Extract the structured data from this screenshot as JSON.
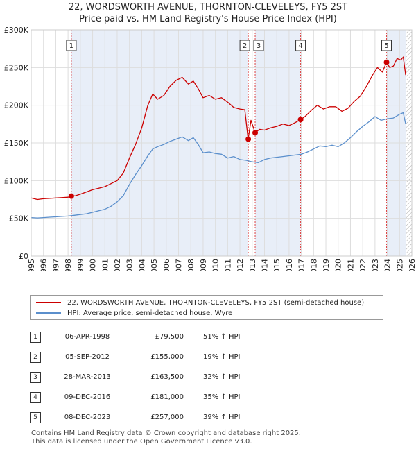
{
  "header": {
    "title_line1": "22, WORDSWORTH AVENUE, THORNTON-CLEVELEYS, FY5 2ST",
    "title_line2": "Price paid vs. HM Land Registry's House Price Index (HPI)"
  },
  "chart_data": {
    "type": "line",
    "title": "22, WORDSWORTH AVENUE, THORNTON-CLEVELEYS, FY5 2ST — Price paid vs. HM Land Registry's House Price Index (HPI)",
    "xlabel": "",
    "ylabel": "",
    "xlim": [
      1995,
      2026
    ],
    "ylim": [
      0,
      300000
    ],
    "x_ticks": [
      "1995",
      "1996",
      "1997",
      "1998",
      "1999",
      "2000",
      "2001",
      "2002",
      "2003",
      "2004",
      "2005",
      "2006",
      "2007",
      "2008",
      "2009",
      "2010",
      "2011",
      "2012",
      "2013",
      "2014",
      "2015",
      "2016",
      "2017",
      "2018",
      "2019",
      "2020",
      "2021",
      "2022",
      "2023",
      "2024",
      "2025",
      "2026"
    ],
    "y_ticks": [
      {
        "value": 0,
        "label": "£0"
      },
      {
        "value": 50000,
        "label": "£50K"
      },
      {
        "value": 100000,
        "label": "£100K"
      },
      {
        "value": 150000,
        "label": "£150K"
      },
      {
        "value": 200000,
        "label": "£200K"
      },
      {
        "value": 250000,
        "label": "£250K"
      },
      {
        "value": 300000,
        "label": "£300K"
      }
    ],
    "colors": {
      "price": "#cc0000",
      "hpi": "#5b8fcc",
      "shade": "#e8eef8",
      "grid": "#dddddd",
      "vline": "#dd4444"
    },
    "series": [
      {
        "name": "22, WORDSWORTH AVENUE, THORNTON-CLEVELEYS, FY5 2ST (semi-detached house)",
        "color": "#cc0000",
        "x": [
          1995.0,
          1995.5,
          1996.0,
          1996.5,
          1997.0,
          1997.5,
          1998.0,
          1998.27,
          1998.6,
          1999.0,
          1999.5,
          2000.0,
          2000.5,
          2001.0,
          2001.5,
          2002.0,
          2002.5,
          2003.0,
          2003.5,
          2004.0,
          2004.5,
          2004.9,
          2005.3,
          2005.8,
          2006.3,
          2006.8,
          2007.3,
          2007.8,
          2008.2,
          2008.6,
          2009.0,
          2009.5,
          2010.0,
          2010.5,
          2011.0,
          2011.5,
          2012.0,
          2012.4,
          2012.67,
          2012.9,
          2013.24,
          2013.6,
          2014.0,
          2014.5,
          2015.0,
          2015.5,
          2016.0,
          2016.5,
          2016.94,
          2017.3,
          2017.8,
          2018.3,
          2018.8,
          2019.3,
          2019.8,
          2020.3,
          2020.8,
          2021.3,
          2021.8,
          2022.3,
          2022.8,
          2023.2,
          2023.6,
          2023.94,
          2024.2,
          2024.5,
          2024.8,
          2025.1,
          2025.3,
          2025.5
        ],
        "values": [
          77000,
          75000,
          76000,
          76500,
          77000,
          77500,
          78000,
          79500,
          80000,
          82000,
          85000,
          88000,
          90000,
          92000,
          96000,
          100000,
          110000,
          130000,
          148000,
          170000,
          200000,
          215000,
          208000,
          213000,
          225000,
          233000,
          237000,
          228000,
          232000,
          222000,
          210000,
          213000,
          208000,
          210000,
          204000,
          197000,
          195000,
          194000,
          155000,
          180000,
          163500,
          168000,
          167000,
          170000,
          172000,
          175000,
          173000,
          177000,
          181000,
          185000,
          193000,
          200000,
          195000,
          198000,
          198000,
          192000,
          196000,
          205000,
          212000,
          225000,
          240000,
          250000,
          244000,
          257000,
          250000,
          252000,
          262000,
          260000,
          264000,
          240000
        ]
      },
      {
        "name": "HPI: Average price, semi-detached house, Wyre",
        "color": "#5b8fcc",
        "x": [
          1995.0,
          1995.5,
          1996.0,
          1996.5,
          1997.0,
          1997.5,
          1998.0,
          1998.5,
          1999.0,
          1999.5,
          2000.0,
          2000.5,
          2001.0,
          2001.5,
          2002.0,
          2002.5,
          2003.0,
          2003.5,
          2004.0,
          2004.5,
          2004.9,
          2005.3,
          2005.8,
          2006.3,
          2006.8,
          2007.3,
          2007.8,
          2008.2,
          2008.6,
          2009.0,
          2009.5,
          2010.0,
          2010.5,
          2011.0,
          2011.5,
          2012.0,
          2012.5,
          2013.0,
          2013.5,
          2014.0,
          2014.5,
          2015.0,
          2015.5,
          2016.0,
          2016.5,
          2017.0,
          2017.5,
          2018.0,
          2018.5,
          2019.0,
          2019.5,
          2020.0,
          2020.5,
          2021.0,
          2021.5,
          2022.0,
          2022.5,
          2023.0,
          2023.5,
          2024.0,
          2024.5,
          2025.0,
          2025.3,
          2025.5
        ],
        "values": [
          51000,
          50500,
          51000,
          51500,
          52000,
          52500,
          53000,
          54000,
          55000,
          56000,
          58000,
          60000,
          62000,
          66000,
          72000,
          80000,
          95000,
          108000,
          120000,
          133000,
          142000,
          145000,
          148000,
          152000,
          155000,
          158000,
          153000,
          157000,
          148000,
          137000,
          138000,
          136000,
          135000,
          130000,
          132000,
          128000,
          127000,
          125000,
          124000,
          128000,
          130000,
          131000,
          132000,
          133000,
          134000,
          135000,
          138000,
          142000,
          146000,
          145000,
          147000,
          145000,
          150000,
          157000,
          165000,
          172000,
          178000,
          185000,
          180000,
          182000,
          183000,
          188000,
          190000,
          175000
        ]
      }
    ],
    "sales": [
      {
        "label": "1",
        "x": 1998.27,
        "y": 79500
      },
      {
        "label": "2",
        "x": 2012.68,
        "y": 155000
      },
      {
        "label": "3",
        "x": 2013.24,
        "y": 163500
      },
      {
        "label": "4",
        "x": 2016.94,
        "y": 181000
      },
      {
        "label": "5",
        "x": 2023.94,
        "y": 257000
      }
    ],
    "shaded_ranges": [
      [
        1998.27,
        2012.68
      ],
      [
        2013.24,
        2016.94
      ],
      [
        2023.94,
        2026
      ]
    ],
    "hatched_range": [
      2025.5,
      2026
    ]
  },
  "legend": {
    "price_label": "22, WORDSWORTH AVENUE, THORNTON-CLEVELEYS, FY5 2ST (semi-detached house)",
    "hpi_label": "HPI: Average price, semi-detached house, Wyre"
  },
  "table": [
    {
      "num": "1",
      "date": "06-APR-1998",
      "price": "£79,500",
      "hpi": "51% ↑ HPI"
    },
    {
      "num": "2",
      "date": "05-SEP-2012",
      "price": "£155,000",
      "hpi": "19% ↑ HPI"
    },
    {
      "num": "3",
      "date": "28-MAR-2013",
      "price": "£163,500",
      "hpi": "32% ↑ HPI"
    },
    {
      "num": "4",
      "date": "09-DEC-2016",
      "price": "£181,000",
      "hpi": "35% ↑ HPI"
    },
    {
      "num": "5",
      "date": "08-DEC-2023",
      "price": "£257,000",
      "hpi": "39% ↑ HPI"
    }
  ],
  "footer": {
    "line1": "Contains HM Land Registry data © Crown copyright and database right 2025.",
    "line2": "This data is licensed under the Open Government Licence v3.0."
  }
}
